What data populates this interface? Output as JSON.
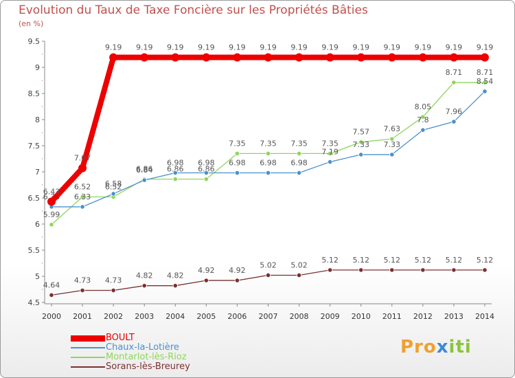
{
  "title": "Evolution du Taux de Taxe Foncière sur les Propriétés Bâties",
  "unit_label": "(en %)",
  "logo": {
    "text": "Proxiti",
    "parts": [
      "Pro",
      "x",
      "iti"
    ]
  },
  "colors": {
    "BOULT": "#ee0000",
    "Chaux-la-Lotière": "#4a90cc",
    "Montarlot-lès-Rioz": "#8ed65a",
    "Sorans-lès-Breurey": "#7a3030"
  },
  "chart_data": {
    "type": "line",
    "title": "Evolution du Taux de Taxe Foncière sur les Propriétés Bâties",
    "xlabel": "",
    "ylabel": "(en %)",
    "ylim": [
      4.5,
      9.5
    ],
    "yticks": [
      "4.5",
      "5",
      "5.5",
      "6",
      "6.5",
      "7",
      "7.5",
      "8",
      "8.5",
      "9",
      "9.5"
    ],
    "grid": false,
    "legend_position": "bottom-left",
    "x": [
      "2000",
      "2001",
      "2002",
      "2003",
      "2004",
      "2005",
      "2006",
      "2007",
      "2008",
      "2009",
      "2010",
      "2011",
      "2012",
      "2013",
      "2014"
    ],
    "series": [
      {
        "name": "Sorans-lès-Breurey",
        "values": [
          4.64,
          4.73,
          4.73,
          4.82,
          4.82,
          4.92,
          4.92,
          5.02,
          5.02,
          5.12,
          5.12,
          5.12,
          5.12,
          5.12,
          5.12
        ],
        "labels": [
          "4.64",
          "4.73",
          "4.73",
          "4.82",
          "4.82",
          "4.92",
          "4.92",
          "5.02",
          "5.02",
          "5.12",
          "5.12",
          "5.12",
          "5.12",
          "5.12",
          "5.12"
        ]
      },
      {
        "name": "Montarlot-lès-Rioz",
        "values": [
          5.99,
          6.52,
          6.52,
          6.86,
          6.86,
          6.86,
          7.35,
          7.35,
          7.35,
          7.35,
          7.57,
          7.63,
          8.05,
          8.71,
          8.71
        ],
        "labels": [
          "5.99",
          "6.52",
          "6.52",
          "6.86",
          "6.86",
          "6.86",
          "7.35",
          "7.35",
          "7.35",
          "7.35",
          "7.57",
          "7.63",
          "8.05",
          "8.71",
          "8.71"
        ]
      },
      {
        "name": "Chaux-la-Lotière",
        "values": [
          6.33,
          6.33,
          6.58,
          6.84,
          6.98,
          6.98,
          6.98,
          6.98,
          6.98,
          7.19,
          7.33,
          7.33,
          7.8,
          7.96,
          8.54
        ],
        "labels": [
          "6.33",
          "6.33",
          "6.58",
          "6.84",
          "6.98",
          "6.98",
          "6.98",
          "6.98",
          "6.98",
          "7.19",
          "7.33",
          "7.33",
          "7.8",
          "7.96",
          "8.54"
        ]
      },
      {
        "name": "BOULT",
        "values": [
          6.43,
          7.07,
          9.19,
          9.19,
          9.19,
          9.19,
          9.19,
          9.19,
          9.19,
          9.19,
          9.19,
          9.19,
          9.19,
          9.19,
          9.19
        ],
        "labels": [
          "6.43",
          "7.07",
          "9.19",
          "9.19",
          "9.19",
          "9.19",
          "9.19",
          "9.19",
          "9.19",
          "9.19",
          "9.19",
          "9.19",
          "9.19",
          "9.19",
          "9.19"
        ]
      }
    ],
    "legend_order": [
      "BOULT",
      "Chaux-la-Lotière",
      "Montarlot-lès-Rioz",
      "Sorans-lès-Breurey"
    ]
  }
}
